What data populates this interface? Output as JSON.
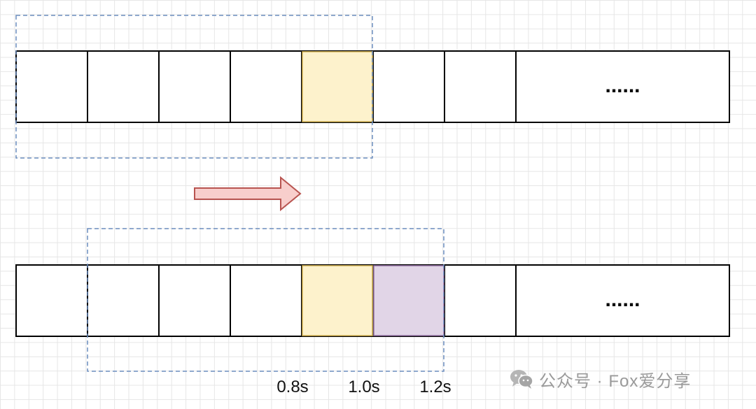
{
  "strip_top": {
    "cells": [
      {
        "fill": "#ffffff",
        "text": ""
      },
      {
        "fill": "#ffffff",
        "text": ""
      },
      {
        "fill": "#ffffff",
        "text": ""
      },
      {
        "fill": "#ffffff",
        "text": ""
      },
      {
        "fill": "#fdf2cc",
        "text": ""
      },
      {
        "fill": "#ffffff",
        "text": ""
      },
      {
        "fill": "#ffffff",
        "text": ""
      },
      {
        "fill": "#ffffff",
        "text": "......"
      }
    ]
  },
  "strip_bottom": {
    "cells": [
      {
        "fill": "#ffffff",
        "text": ""
      },
      {
        "fill": "#ffffff",
        "text": ""
      },
      {
        "fill": "#ffffff",
        "text": ""
      },
      {
        "fill": "#ffffff",
        "text": ""
      },
      {
        "fill": "#fdf2cc",
        "text": ""
      },
      {
        "fill": "#e1d5e7",
        "text": ""
      },
      {
        "fill": "#ffffff",
        "text": ""
      },
      {
        "fill": "#ffffff",
        "text": "......"
      }
    ]
  },
  "colors": {
    "window_border": "#6c8ebf",
    "arrow_fill": "#f8cecc",
    "arrow_stroke": "#b85450",
    "highlight_stroke_yellow": "#d6b656",
    "highlight_stroke_purple": "#9673a6"
  },
  "time_labels": {
    "t1": "0.8s",
    "t2": "1.0s",
    "t3": "1.2s"
  },
  "watermark": {
    "icon": "wechat-icon",
    "text": "公众号 · Fox爱分享"
  }
}
